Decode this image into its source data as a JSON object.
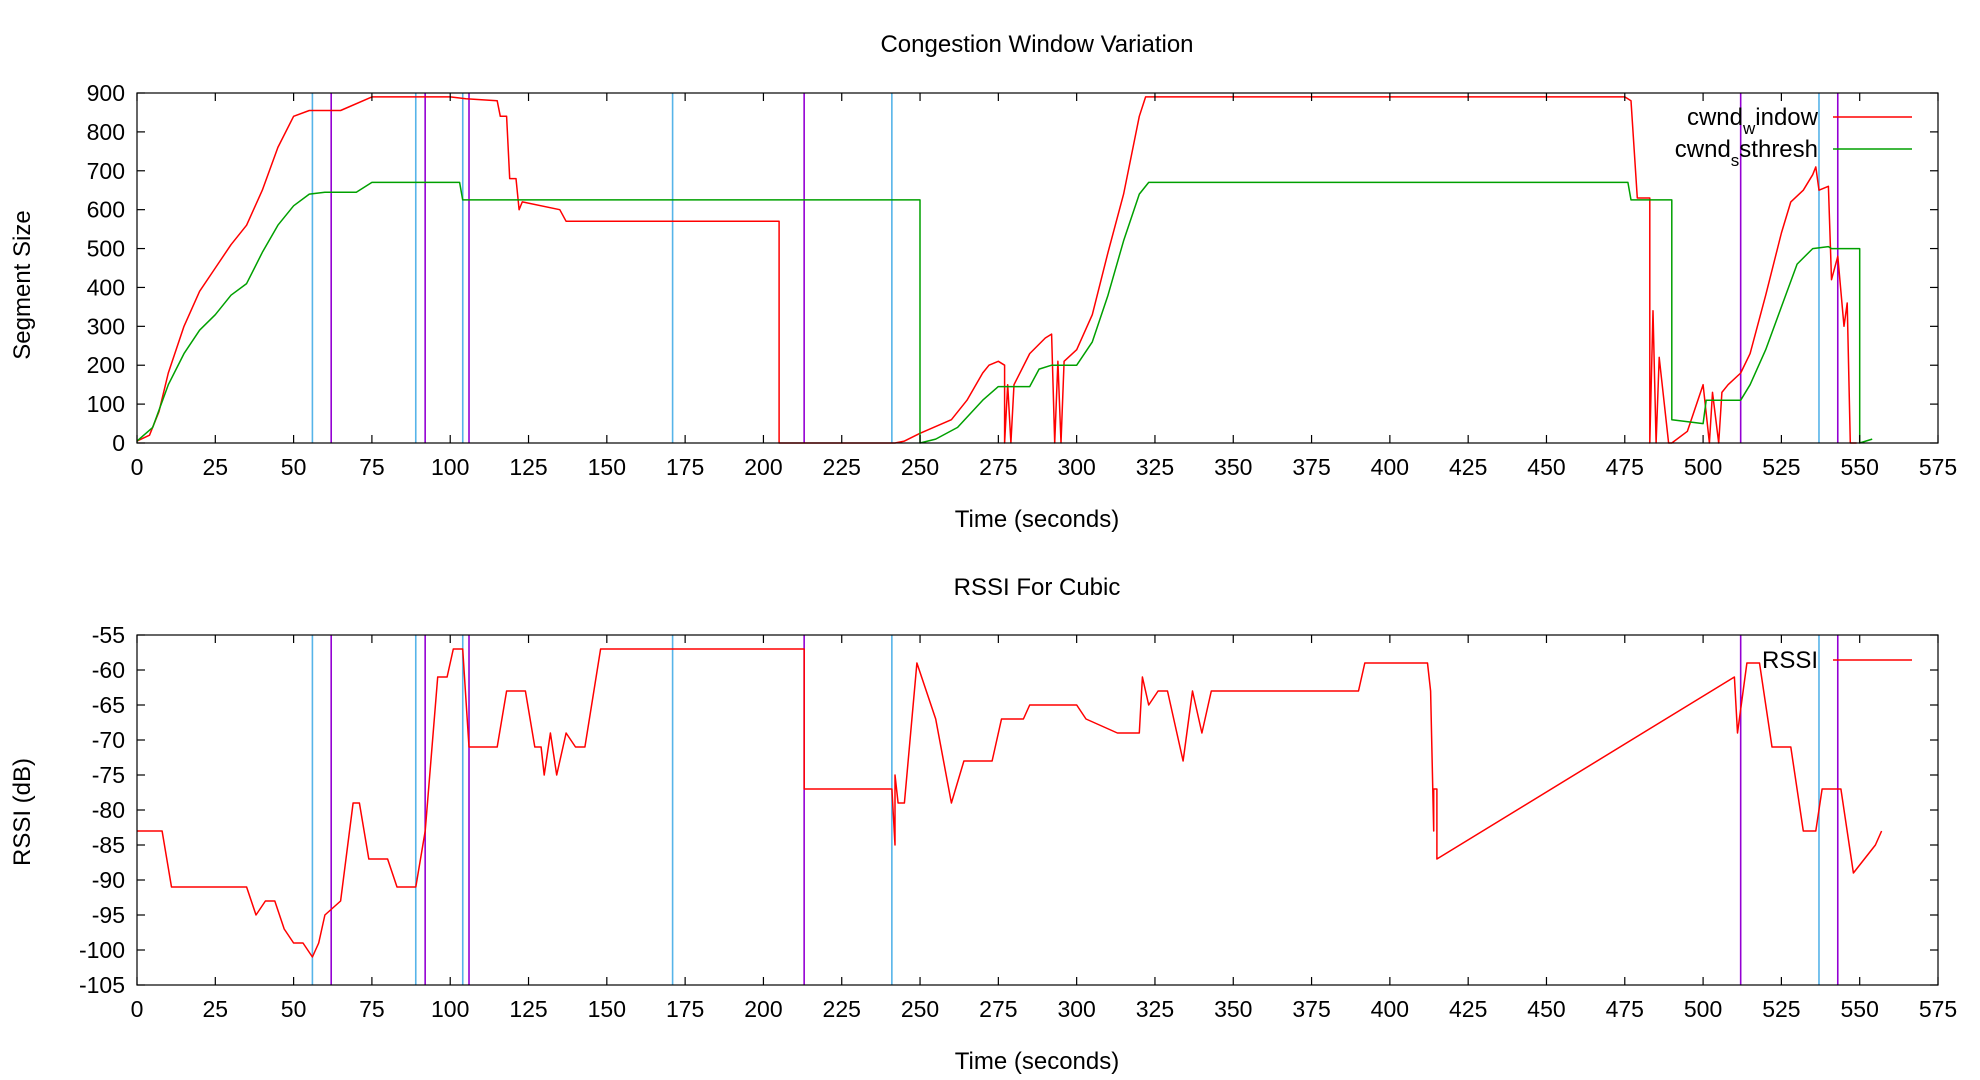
{
  "colors": {
    "cwnd_window": "#ff0000",
    "cwnd_ssthresh": "#00a000",
    "rssi": "#ff0000",
    "marker_cyan": "#56b4e9",
    "marker_purple": "#9400d3",
    "axes": "#000000"
  },
  "chart_data": [
    {
      "type": "line",
      "title": "Congestion Window Variation",
      "xlabel": "Time (seconds)",
      "ylabel": "Segment Size",
      "xlim": [
        0,
        575
      ],
      "ylim": [
        0,
        900
      ],
      "xticks": [
        0,
        25,
        50,
        75,
        100,
        125,
        150,
        175,
        200,
        225,
        250,
        275,
        300,
        325,
        350,
        375,
        400,
        425,
        450,
        475,
        500,
        525,
        550,
        575
      ],
      "yticks": [
        0,
        100,
        200,
        300,
        400,
        500,
        600,
        700,
        800,
        900
      ],
      "legend_position": "top-right",
      "legend": [
        {
          "label": "cwnd",
          "sub": "w",
          "rest": "indow",
          "series": "cwnd_window"
        },
        {
          "label": "cwnd",
          "sub": "s",
          "rest": "sthresh",
          "series": "cwnd_ssthresh"
        }
      ],
      "series": [
        {
          "name": "cwnd_window",
          "points": [
            [
              0,
              5
            ],
            [
              4,
              20
            ],
            [
              7,
              80
            ],
            [
              10,
              180
            ],
            [
              15,
              300
            ],
            [
              20,
              390
            ],
            [
              25,
              450
            ],
            [
              30,
              510
            ],
            [
              35,
              560
            ],
            [
              40,
              650
            ],
            [
              45,
              760
            ],
            [
              50,
              840
            ],
            [
              55,
              855
            ],
            [
              65,
              855
            ],
            [
              75,
              890
            ],
            [
              100,
              890
            ],
            [
              105,
              885
            ],
            [
              115,
              880
            ],
            [
              116,
              840
            ],
            [
              118,
              840
            ],
            [
              119,
              680
            ],
            [
              121,
              680
            ],
            [
              122,
              600
            ],
            [
              123,
              620
            ],
            [
              135,
              600
            ],
            [
              137,
              570
            ],
            [
              205,
              570
            ],
            [
              205,
              0
            ],
            [
              242,
              0
            ],
            [
              245,
              5
            ],
            [
              250,
              25
            ],
            [
              260,
              60
            ],
            [
              265,
              110
            ],
            [
              270,
              180
            ],
            [
              272,
              200
            ],
            [
              275,
              210
            ],
            [
              277,
              200
            ],
            [
              277,
              0
            ],
            [
              278,
              150
            ],
            [
              279,
              0
            ],
            [
              280,
              150
            ],
            [
              285,
              230
            ],
            [
              290,
              270
            ],
            [
              292,
              280
            ],
            [
              293,
              0
            ],
            [
              294,
              210
            ],
            [
              295,
              0
            ],
            [
              296,
              210
            ],
            [
              300,
              240
            ],
            [
              305,
              330
            ],
            [
              310,
              490
            ],
            [
              315,
              640
            ],
            [
              320,
              840
            ],
            [
              322,
              890
            ],
            [
              475,
              890
            ],
            [
              477,
              880
            ],
            [
              479,
              630
            ],
            [
              483,
              630
            ],
            [
              483,
              0
            ],
            [
              484,
              340
            ],
            [
              485,
              0
            ],
            [
              486,
              220
            ],
            [
              489,
              0
            ],
            [
              490,
              0
            ],
            [
              495,
              30
            ],
            [
              500,
              150
            ],
            [
              502,
              0
            ],
            [
              503,
              130
            ],
            [
              505,
              0
            ],
            [
              506,
              130
            ],
            [
              508,
              150
            ],
            [
              512,
              180
            ],
            [
              515,
              230
            ],
            [
              520,
              380
            ],
            [
              525,
              540
            ],
            [
              528,
              620
            ],
            [
              532,
              650
            ],
            [
              535,
              690
            ],
            [
              536,
              710
            ],
            [
              537,
              650
            ],
            [
              540,
              660
            ],
            [
              541,
              420
            ],
            [
              543,
              480
            ],
            [
              545,
              300
            ],
            [
              546,
              360
            ],
            [
              547,
              0
            ],
            [
              549,
              0
            ]
          ]
        },
        {
          "name": "cwnd_ssthresh",
          "points": [
            [
              0,
              5
            ],
            [
              5,
              40
            ],
            [
              10,
              150
            ],
            [
              15,
              230
            ],
            [
              20,
              290
            ],
            [
              25,
              330
            ],
            [
              30,
              380
            ],
            [
              35,
              410
            ],
            [
              40,
              490
            ],
            [
              45,
              560
            ],
            [
              50,
              610
            ],
            [
              55,
              640
            ],
            [
              60,
              645
            ],
            [
              70,
              645
            ],
            [
              75,
              670
            ],
            [
              103,
              670
            ],
            [
              104,
              625
            ],
            [
              250,
              625
            ],
            [
              250,
              0
            ],
            [
              255,
              10
            ],
            [
              262,
              40
            ],
            [
              270,
              110
            ],
            [
              275,
              145
            ],
            [
              285,
              145
            ],
            [
              288,
              190
            ],
            [
              292,
              200
            ],
            [
              300,
              200
            ],
            [
              305,
              260
            ],
            [
              310,
              380
            ],
            [
              315,
              520
            ],
            [
              320,
              640
            ],
            [
              323,
              670
            ],
            [
              476,
              670
            ],
            [
              477,
              625
            ],
            [
              490,
              625
            ],
            [
              490,
              60
            ],
            [
              500,
              50
            ],
            [
              501,
              110
            ],
            [
              512,
              110
            ],
            [
              515,
              150
            ],
            [
              520,
              240
            ],
            [
              525,
              350
            ],
            [
              530,
              460
            ],
            [
              535,
              500
            ],
            [
              540,
              505
            ],
            [
              541,
              500
            ],
            [
              550,
              500
            ],
            [
              550,
              0
            ],
            [
              554,
              10
            ]
          ]
        }
      ],
      "vlines_cyan": [
        56,
        89,
        104,
        171,
        241,
        537
      ],
      "vlines_purple": [
        62,
        92,
        106,
        213,
        512,
        543
      ]
    },
    {
      "type": "line",
      "title": "RSSI For Cubic",
      "xlabel": "Time (seconds)",
      "ylabel": "RSSI (dB)",
      "xlim": [
        0,
        575
      ],
      "ylim": [
        -105,
        -55
      ],
      "xticks": [
        0,
        25,
        50,
        75,
        100,
        125,
        150,
        175,
        200,
        225,
        250,
        275,
        300,
        325,
        350,
        375,
        400,
        425,
        450,
        475,
        500,
        525,
        550,
        575
      ],
      "yticks": [
        -55,
        -60,
        -65,
        -70,
        -75,
        -80,
        -85,
        -90,
        -95,
        -100,
        -105
      ],
      "legend_position": "top-right",
      "legend": [
        {
          "label": "RSSI",
          "sub": "",
          "rest": "",
          "series": "rssi"
        }
      ],
      "series": [
        {
          "name": "rssi",
          "points": [
            [
              0,
              -83
            ],
            [
              8,
              -83
            ],
            [
              11,
              -91
            ],
            [
              35,
              -91
            ],
            [
              38,
              -95
            ],
            [
              41,
              -93
            ],
            [
              44,
              -93
            ],
            [
              47,
              -97
            ],
            [
              50,
              -99
            ],
            [
              53,
              -99
            ],
            [
              56,
              -101
            ],
            [
              58,
              -99
            ],
            [
              60,
              -95
            ],
            [
              65,
              -93
            ],
            [
              69,
              -79
            ],
            [
              71,
              -79
            ],
            [
              74,
              -87
            ],
            [
              80,
              -87
            ],
            [
              83,
              -91
            ],
            [
              89,
              -91
            ],
            [
              92,
              -83
            ],
            [
              96,
              -61
            ],
            [
              99,
              -61
            ],
            [
              101,
              -57
            ],
            [
              104,
              -57
            ],
            [
              106,
              -71
            ],
            [
              115,
              -71
            ],
            [
              118,
              -63
            ],
            [
              124,
              -63
            ],
            [
              127,
              -71
            ],
            [
              129,
              -71
            ],
            [
              130,
              -75
            ],
            [
              132,
              -69
            ],
            [
              134,
              -75
            ],
            [
              137,
              -69
            ],
            [
              140,
              -71
            ],
            [
              143,
              -71
            ],
            [
              148,
              -57
            ],
            [
              213,
              -57
            ],
            [
              213,
              -77
            ],
            [
              241,
              -77
            ],
            [
              242,
              -85
            ],
            [
              242,
              -75
            ],
            [
              243,
              -79
            ],
            [
              245,
              -79
            ],
            [
              249,
              -59
            ],
            [
              255,
              -67
            ],
            [
              260,
              -79
            ],
            [
              264,
              -73
            ],
            [
              273,
              -73
            ],
            [
              276,
              -67
            ],
            [
              283,
              -67
            ],
            [
              285,
              -65
            ],
            [
              300,
              -65
            ],
            [
              303,
              -67
            ],
            [
              313,
              -69
            ],
            [
              320,
              -69
            ],
            [
              321,
              -61
            ],
            [
              323,
              -65
            ],
            [
              326,
              -63
            ],
            [
              329,
              -63
            ],
            [
              334,
              -73
            ],
            [
              337,
              -63
            ],
            [
              340,
              -69
            ],
            [
              343,
              -63
            ],
            [
              390,
              -63
            ],
            [
              392,
              -59
            ],
            [
              412,
              -59
            ],
            [
              413,
              -63
            ],
            [
              414,
              -83
            ],
            [
              414,
              -77
            ],
            [
              415,
              -77
            ],
            [
              415,
              -87
            ],
            [
              510,
              -61
            ],
            [
              511,
              -69
            ],
            [
              514,
              -59
            ],
            [
              518,
              -59
            ],
            [
              522,
              -71
            ],
            [
              528,
              -71
            ],
            [
              532,
              -83
            ],
            [
              536,
              -83
            ],
            [
              538,
              -77
            ],
            [
              544,
              -77
            ],
            [
              548,
              -89
            ],
            [
              555,
              -85
            ],
            [
              557,
              -83
            ]
          ]
        }
      ],
      "vlines_cyan": [
        56,
        89,
        104,
        171,
        241,
        537
      ],
      "vlines_purple": [
        62,
        92,
        106,
        213,
        512,
        543
      ]
    }
  ]
}
